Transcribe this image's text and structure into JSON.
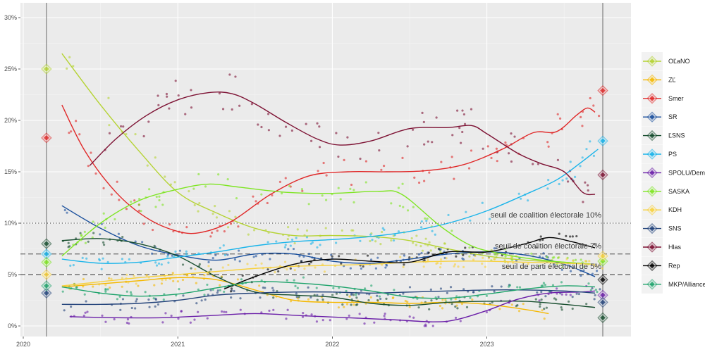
{
  "chart_data": {
    "type": "line",
    "title": "",
    "xlabel": "",
    "ylabel": "",
    "xlim": [
      2019.98,
      2023.9
    ],
    "ylim": [
      -1,
      31
    ],
    "grid": true,
    "legend_position": "right",
    "x_ticks": [
      {
        "value": 2020,
        "label": "2020"
      },
      {
        "value": 2021,
        "label": "2021"
      },
      {
        "value": 2022,
        "label": "2022"
      },
      {
        "value": 2023,
        "label": "2023"
      }
    ],
    "y_ticks": [
      {
        "value": 0,
        "label": "0%"
      },
      {
        "value": 5,
        "label": "5%"
      },
      {
        "value": 10,
        "label": "10%"
      },
      {
        "value": 15,
        "label": "15%"
      },
      {
        "value": 20,
        "label": "20%"
      },
      {
        "value": 25,
        "label": "25%"
      },
      {
        "value": 30,
        "label": "30%"
      }
    ],
    "election_lines": [
      2020.15,
      2023.75
    ],
    "thresholds": [
      {
        "value": 10,
        "style": "dotted",
        "label": "seuil de coalition électorale 10%"
      },
      {
        "value": 7,
        "style": "dashed",
        "label": "seuil de coalition électorale 7%"
      },
      {
        "value": 5,
        "style": "dashed",
        "label": "seuil de parti électoral de 5%"
      }
    ],
    "series": [
      {
        "name": "OĽaNO",
        "color": "#b5d334",
        "trend": [
          [
            2020.25,
            26.5
          ],
          [
            2020.5,
            21.5
          ],
          [
            2020.75,
            17
          ],
          [
            2021.0,
            13
          ],
          [
            2021.25,
            11
          ],
          [
            2021.5,
            9.5
          ],
          [
            2021.75,
            8.8
          ],
          [
            2022.0,
            8.8
          ],
          [
            2022.25,
            8.7
          ],
          [
            2022.5,
            8.3
          ],
          [
            2022.75,
            7.5
          ],
          [
            2023.0,
            6.8
          ],
          [
            2023.25,
            6.4
          ],
          [
            2023.5,
            6.2
          ],
          [
            2023.7,
            6.0
          ]
        ],
        "election_start": 25.0,
        "election_end": null
      },
      {
        "name": "ZĽ",
        "color": "#f5b800",
        "trend": [
          [
            2020.25,
            3.8
          ],
          [
            2020.5,
            4.1
          ],
          [
            2020.75,
            4.4
          ],
          [
            2021.0,
            4.7
          ],
          [
            2021.25,
            4.5
          ],
          [
            2021.5,
            3.5
          ],
          [
            2021.75,
            2.5
          ],
          [
            2022.0,
            2.3
          ],
          [
            2022.25,
            2.3
          ],
          [
            2022.5,
            2.2
          ],
          [
            2022.75,
            2.3
          ],
          [
            2023.0,
            2.1
          ],
          [
            2023.25,
            1.6
          ],
          [
            2023.4,
            1.2
          ]
        ],
        "election_start": null,
        "election_end": null
      },
      {
        "name": "Smer",
        "color": "#e02828",
        "trend": [
          [
            2020.25,
            21.5
          ],
          [
            2020.4,
            17
          ],
          [
            2020.6,
            13
          ],
          [
            2020.8,
            10.5
          ],
          [
            2021.0,
            9.2
          ],
          [
            2021.15,
            9.1
          ],
          [
            2021.35,
            10.2
          ],
          [
            2021.6,
            12.8
          ],
          [
            2021.85,
            14.6
          ],
          [
            2022.1,
            15.0
          ],
          [
            2022.35,
            15.0
          ],
          [
            2022.6,
            15.1
          ],
          [
            2022.85,
            15.7
          ],
          [
            2023.1,
            17.2
          ],
          [
            2023.3,
            18.8
          ],
          [
            2023.45,
            18.9
          ],
          [
            2023.58,
            20.5
          ],
          [
            2023.65,
            21.2
          ],
          [
            2023.7,
            20.8
          ]
        ],
        "election_start": 18.3,
        "election_end": 22.9
      },
      {
        "name": "SR",
        "color": "#1a4f9c",
        "trend": [
          [
            2020.25,
            11.7
          ],
          [
            2020.5,
            9.5
          ],
          [
            2020.75,
            7.8
          ],
          [
            2021.0,
            6.9
          ],
          [
            2021.25,
            6.4
          ],
          [
            2021.5,
            7.0
          ],
          [
            2021.75,
            7.0
          ],
          [
            2022.0,
            6.3
          ],
          [
            2022.25,
            6.1
          ],
          [
            2022.5,
            6.5
          ],
          [
            2022.75,
            7.0
          ],
          [
            2023.0,
            7.2
          ],
          [
            2023.25,
            6.9
          ],
          [
            2023.5,
            6.0
          ],
          [
            2023.7,
            4.8
          ]
        ],
        "election_start": null,
        "election_end": null
      },
      {
        "name": "ĽSNS",
        "color": "#174d2e",
        "trend": [
          [
            2020.25,
            8.3
          ],
          [
            2020.5,
            8.5
          ],
          [
            2020.75,
            8.0
          ],
          [
            2021.0,
            6.8
          ],
          [
            2021.25,
            4.8
          ],
          [
            2021.5,
            3.3
          ],
          [
            2021.75,
            3.0
          ],
          [
            2022.0,
            2.8
          ],
          [
            2022.25,
            2.2
          ],
          [
            2022.5,
            2.0
          ],
          [
            2022.75,
            2.3
          ],
          [
            2023.0,
            2.4
          ],
          [
            2023.25,
            2.4
          ],
          [
            2023.5,
            2.1
          ],
          [
            2023.7,
            1.8
          ]
        ],
        "election_start": 8.0,
        "election_end": 0.8
      },
      {
        "name": "PS",
        "color": "#1ab4ea",
        "trend": [
          [
            2020.25,
            6.5
          ],
          [
            2020.5,
            6.1
          ],
          [
            2020.75,
            6.2
          ],
          [
            2021.0,
            6.7
          ],
          [
            2021.25,
            7.2
          ],
          [
            2021.5,
            7.8
          ],
          [
            2021.75,
            8.2
          ],
          [
            2022.0,
            8.4
          ],
          [
            2022.25,
            8.7
          ],
          [
            2022.5,
            9.2
          ],
          [
            2022.75,
            10.0
          ],
          [
            2023.0,
            11.2
          ],
          [
            2023.25,
            12.8
          ],
          [
            2023.45,
            14.2
          ],
          [
            2023.6,
            15.8
          ],
          [
            2023.72,
            17.2
          ]
        ],
        "election_start": 7.0,
        "election_end": 18.0
      },
      {
        "name": "SPOLU/Dem",
        "color": "#6a1ea8",
        "trend": [
          [
            2020.3,
            0.9
          ],
          [
            2020.6,
            0.8
          ],
          [
            2020.9,
            0.8
          ],
          [
            2021.2,
            1.0
          ],
          [
            2021.5,
            1.2
          ],
          [
            2021.8,
            1.0
          ],
          [
            2022.1,
            0.8
          ],
          [
            2022.4,
            0.6
          ],
          [
            2022.65,
            0.4
          ],
          [
            2022.8,
            0.6
          ],
          [
            2023.0,
            1.5
          ],
          [
            2023.2,
            2.6
          ],
          [
            2023.4,
            3.2
          ],
          [
            2023.6,
            3.3
          ],
          [
            2023.7,
            3.4
          ]
        ],
        "election_start": null,
        "election_end": 3.0
      },
      {
        "name": "SASKA",
        "color": "#7ee522",
        "trend": [
          [
            2020.25,
            6.8
          ],
          [
            2020.5,
            10.0
          ],
          [
            2020.75,
            12.2
          ],
          [
            2021.0,
            13.3
          ],
          [
            2021.2,
            13.8
          ],
          [
            2021.4,
            13.5
          ],
          [
            2021.7,
            13.0
          ],
          [
            2022.0,
            12.9
          ],
          [
            2022.3,
            13.1
          ],
          [
            2022.45,
            12.8
          ],
          [
            2022.7,
            9.7
          ],
          [
            2022.9,
            7.8
          ],
          [
            2023.1,
            7.0
          ],
          [
            2023.3,
            6.5
          ],
          [
            2023.5,
            6.2
          ],
          [
            2023.7,
            6.0
          ]
        ],
        "election_start": 6.2,
        "election_end": 6.3
      },
      {
        "name": "KDH",
        "color": "#f7d13e",
        "trend": [
          [
            2020.25,
            3.9
          ],
          [
            2020.5,
            4.3
          ],
          [
            2020.75,
            4.7
          ],
          [
            2021.0,
            5.0
          ],
          [
            2021.25,
            5.3
          ],
          [
            2021.5,
            5.6
          ],
          [
            2021.75,
            5.8
          ],
          [
            2022.0,
            5.9
          ],
          [
            2022.25,
            6.0
          ],
          [
            2022.5,
            6.2
          ],
          [
            2022.75,
            6.3
          ],
          [
            2023.0,
            6.3
          ],
          [
            2023.25,
            6.2
          ],
          [
            2023.5,
            6.1
          ],
          [
            2023.7,
            6.0
          ]
        ],
        "election_start": 5.0,
        "election_end": 6.8
      },
      {
        "name": "SNS",
        "color": "#23437a",
        "trend": [
          [
            2020.25,
            2.1
          ],
          [
            2020.5,
            2.1
          ],
          [
            2020.75,
            2.2
          ],
          [
            2021.0,
            2.5
          ],
          [
            2021.25,
            3.0
          ],
          [
            2021.5,
            3.2
          ],
          [
            2021.75,
            3.3
          ],
          [
            2022.0,
            3.3
          ],
          [
            2022.25,
            3.2
          ],
          [
            2022.5,
            3.3
          ],
          [
            2022.75,
            3.4
          ],
          [
            2023.0,
            3.5
          ],
          [
            2023.25,
            3.5
          ],
          [
            2023.5,
            3.4
          ],
          [
            2023.7,
            3.2
          ]
        ],
        "election_start": 3.2,
        "election_end": 2.3
      },
      {
        "name": "Hlas",
        "color": "#7d1133",
        "trend": [
          [
            2020.43,
            15.6
          ],
          [
            2020.6,
            18.2
          ],
          [
            2020.8,
            20.5
          ],
          [
            2021.0,
            22.0
          ],
          [
            2021.2,
            22.7
          ],
          [
            2021.35,
            22.6
          ],
          [
            2021.5,
            21.6
          ],
          [
            2021.7,
            19.8
          ],
          [
            2021.9,
            18.2
          ],
          [
            2022.05,
            17.6
          ],
          [
            2022.25,
            18.0
          ],
          [
            2022.5,
            19.2
          ],
          [
            2022.75,
            19.3
          ],
          [
            2022.9,
            19.5
          ],
          [
            2023.0,
            18.7
          ],
          [
            2023.2,
            16.8
          ],
          [
            2023.35,
            15.8
          ],
          [
            2023.5,
            15.0
          ],
          [
            2023.62,
            13.0
          ],
          [
            2023.7,
            12.8
          ]
        ],
        "election_start": null,
        "election_end": 14.7
      },
      {
        "name": "Rep",
        "color": "#000000",
        "trend": [
          [
            2021.3,
            3.6
          ],
          [
            2021.5,
            4.8
          ],
          [
            2021.75,
            6.0
          ],
          [
            2022.0,
            6.5
          ],
          [
            2022.25,
            6.3
          ],
          [
            2022.5,
            6.2
          ],
          [
            2022.75,
            7.2
          ],
          [
            2023.0,
            7.2
          ],
          [
            2023.25,
            8.0
          ],
          [
            2023.4,
            8.6
          ],
          [
            2023.55,
            8.2
          ],
          [
            2023.7,
            7.6
          ]
        ],
        "election_start": null,
        "election_end": 4.5
      },
      {
        "name": "MKP/Alliance",
        "color": "#1ea36b",
        "trend": [
          [
            2020.25,
            3.8
          ],
          [
            2020.5,
            3.2
          ],
          [
            2020.75,
            2.9
          ],
          [
            2021.0,
            3.1
          ],
          [
            2021.25,
            3.7
          ],
          [
            2021.5,
            4.3
          ],
          [
            2021.75,
            4.2
          ],
          [
            2022.0,
            3.9
          ],
          [
            2022.25,
            3.4
          ],
          [
            2022.5,
            2.8
          ],
          [
            2022.75,
            2.7
          ],
          [
            2023.0,
            3.1
          ],
          [
            2023.25,
            3.6
          ],
          [
            2023.5,
            3.9
          ],
          [
            2023.7,
            3.8
          ]
        ],
        "election_start": 3.9,
        "election_end": null
      }
    ]
  }
}
